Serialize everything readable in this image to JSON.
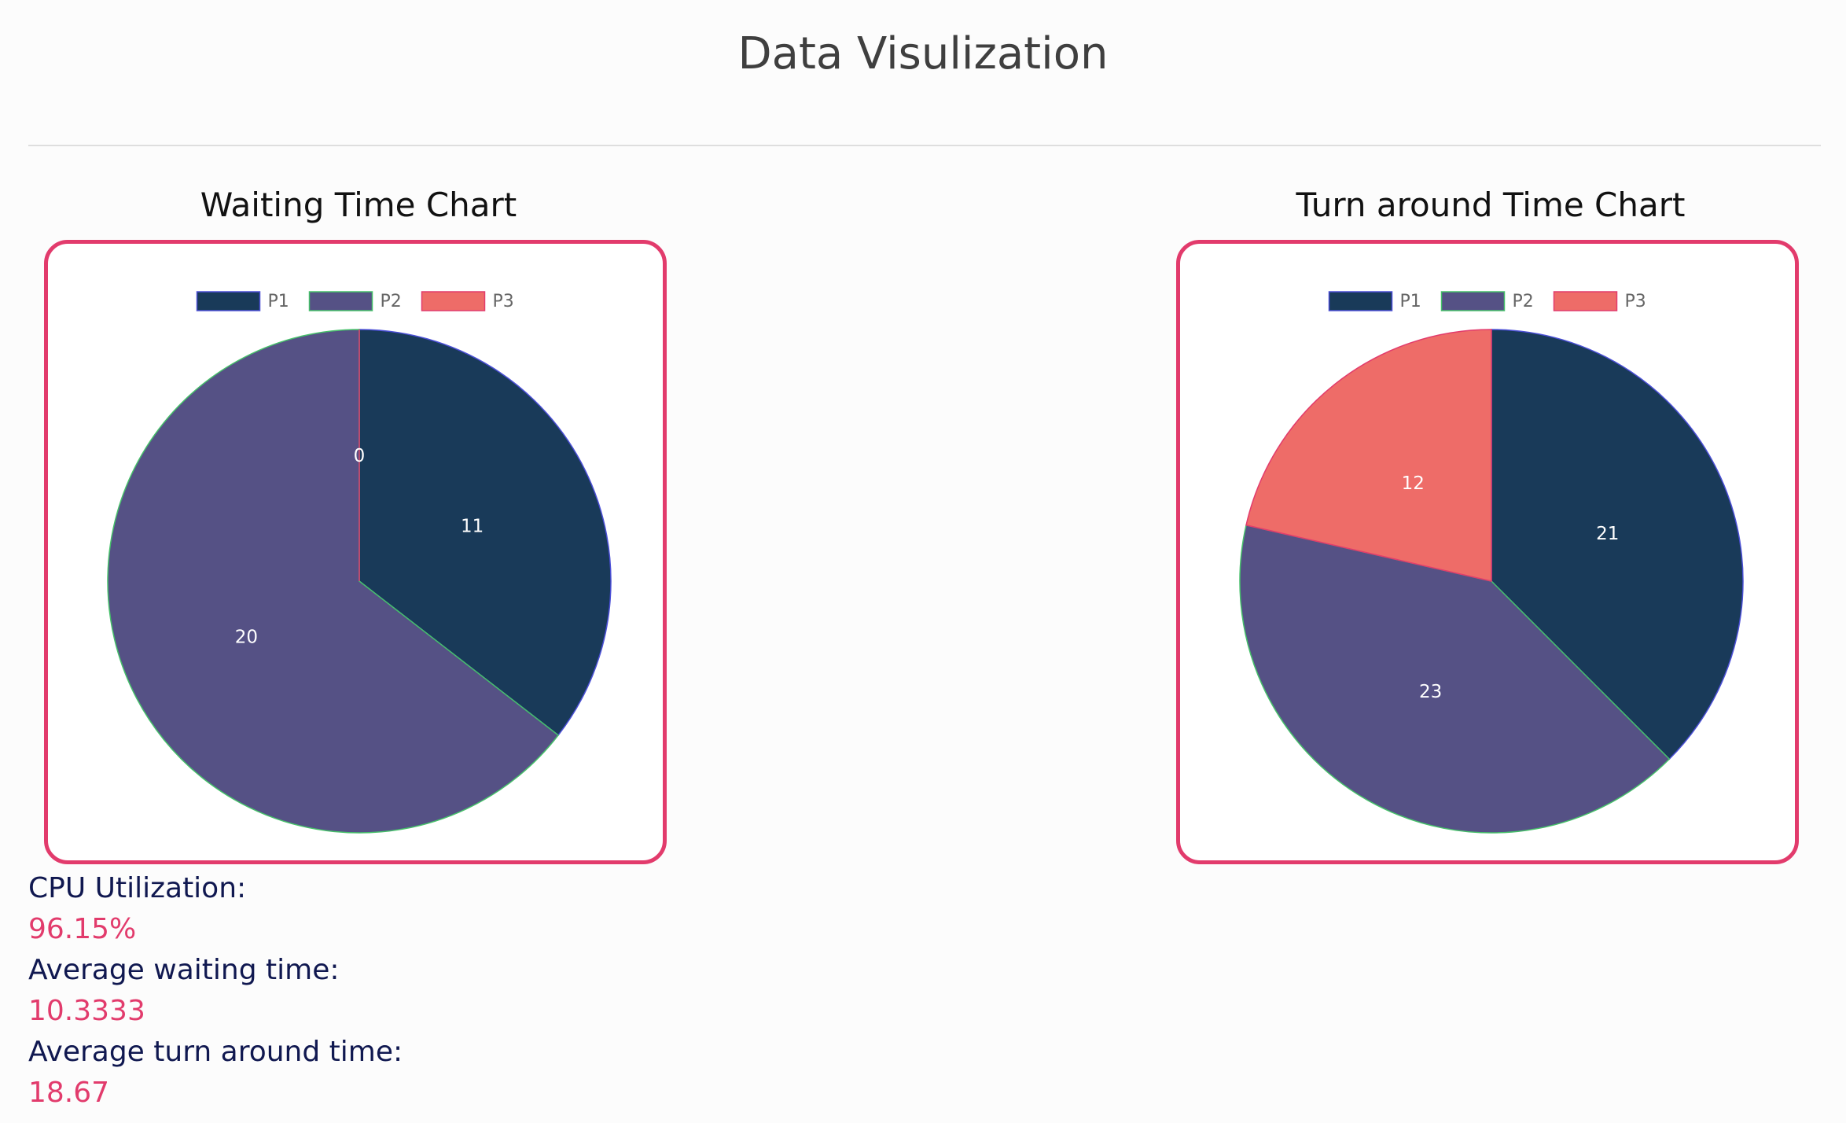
{
  "page": {
    "title": "Data Visulization"
  },
  "colors": {
    "P1": "#193a59",
    "P2": "#555185",
    "P3": "#ee6c68",
    "accent": "#e23b6c",
    "stat_label": "#101850"
  },
  "chart_data": [
    {
      "type": "pie",
      "title": "Waiting Time Chart",
      "categories": [
        "P1",
        "P2",
        "P3"
      ],
      "values": [
        11,
        20,
        0
      ],
      "legend": "top"
    },
    {
      "type": "pie",
      "title": "Turn around Time Chart",
      "categories": [
        "P1",
        "P2",
        "P3"
      ],
      "values": [
        21,
        23,
        12
      ],
      "legend": "top"
    }
  ],
  "stats": [
    {
      "label": "CPU Utilization:",
      "value": "96.15%"
    },
    {
      "label": "Average waiting time:",
      "value": "10.3333"
    },
    {
      "label": "Average turn around time:",
      "value": "18.67"
    }
  ]
}
